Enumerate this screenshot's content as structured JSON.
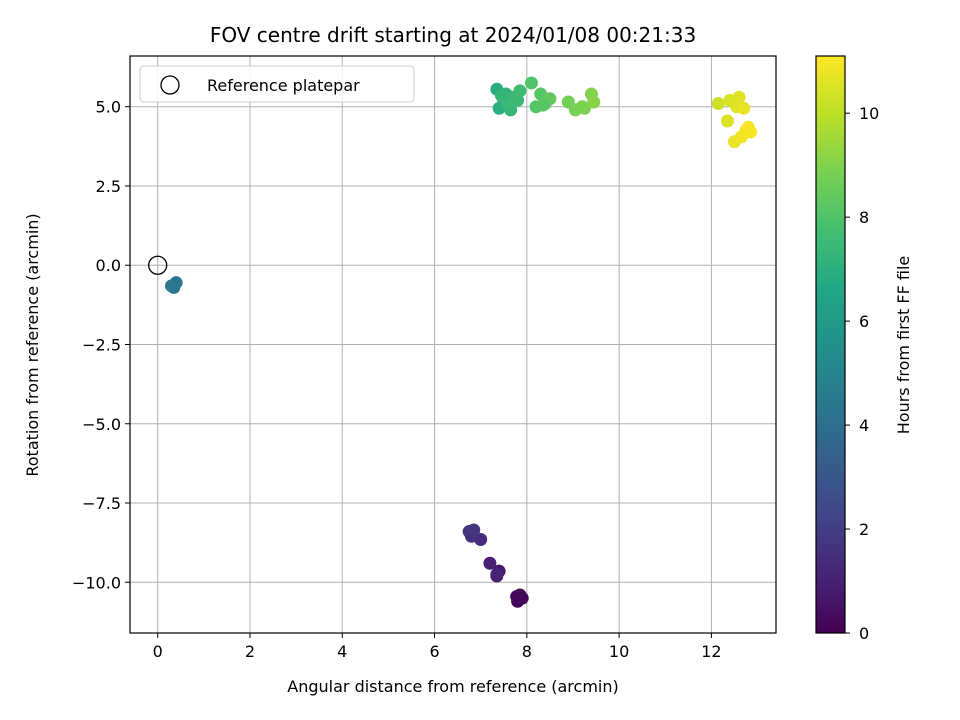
{
  "chart_data": {
    "type": "scatter",
    "title": "FOV centre drift starting at 2024/01/08 00:21:33",
    "xlabel": "Angular distance from reference (arcmin)",
    "ylabel": "Rotation from reference (arcmin)",
    "xlim": [
      -0.6,
      13.4
    ],
    "ylim": [
      -11.6,
      6.6
    ],
    "xticks": [
      0,
      2,
      4,
      6,
      8,
      10,
      12
    ],
    "yticks": [
      5.0,
      2.5,
      0.0,
      -2.5,
      -5.0,
      -7.5,
      -10.0
    ],
    "xtick_labels": [
      "0",
      "2",
      "4",
      "6",
      "8",
      "10",
      "12"
    ],
    "ytick_labels": [
      "5.0",
      "2.5",
      "0.0",
      "−2.5",
      "−5.0",
      "−7.5",
      "−10.0"
    ],
    "grid": true,
    "legend": {
      "position": "top-left",
      "entries": [
        "Reference platepar"
      ]
    },
    "reference_point": {
      "x": 0,
      "y": 0
    },
    "colorbar": {
      "label": "Hours from first FF file",
      "range": [
        0,
        11.1
      ],
      "ticks": [
        0,
        2,
        4,
        6,
        8,
        10
      ],
      "tick_labels": [
        "0",
        "2",
        "4",
        "6",
        "8",
        "10"
      ],
      "colormap": "viridis"
    },
    "points": [
      {
        "x": 7.8,
        "y": -10.6,
        "c": 0.0
      },
      {
        "x": 7.85,
        "y": -10.4,
        "c": 0.1
      },
      {
        "x": 7.9,
        "y": -10.5,
        "c": 0.2
      },
      {
        "x": 7.78,
        "y": -10.45,
        "c": 0.3
      },
      {
        "x": 7.35,
        "y": -9.8,
        "c": 0.7
      },
      {
        "x": 7.4,
        "y": -9.65,
        "c": 0.8
      },
      {
        "x": 7.2,
        "y": -9.4,
        "c": 1.0
      },
      {
        "x": 7.35,
        "y": -9.75,
        "c": 1.1
      },
      {
        "x": 7.0,
        "y": -8.65,
        "c": 1.4
      },
      {
        "x": 6.8,
        "y": -8.55,
        "c": 1.5
      },
      {
        "x": 6.75,
        "y": -8.4,
        "c": 1.6
      },
      {
        "x": 6.85,
        "y": -8.35,
        "c": 1.7
      },
      {
        "x": 0.35,
        "y": -0.7,
        "c": 4.2
      },
      {
        "x": 0.4,
        "y": -0.55,
        "c": 4.3
      },
      {
        "x": 0.3,
        "y": -0.65,
        "c": 4.4
      },
      {
        "x": 7.35,
        "y": 5.55,
        "c": 6.9
      },
      {
        "x": 7.4,
        "y": 4.95,
        "c": 7.0
      },
      {
        "x": 7.5,
        "y": 5.2,
        "c": 7.1
      },
      {
        "x": 7.55,
        "y": 5.4,
        "c": 7.2
      },
      {
        "x": 7.65,
        "y": 4.9,
        "c": 7.3
      },
      {
        "x": 7.7,
        "y": 5.3,
        "c": 7.4
      },
      {
        "x": 7.8,
        "y": 5.2,
        "c": 7.5
      },
      {
        "x": 7.85,
        "y": 5.5,
        "c": 7.6
      },
      {
        "x": 7.6,
        "y": 5.1,
        "c": 7.5
      },
      {
        "x": 7.45,
        "y": 5.35,
        "c": 7.3
      },
      {
        "x": 8.1,
        "y": 5.75,
        "c": 8.0
      },
      {
        "x": 8.2,
        "y": 5.0,
        "c": 8.1
      },
      {
        "x": 8.3,
        "y": 5.4,
        "c": 8.2
      },
      {
        "x": 8.4,
        "y": 5.1,
        "c": 8.3
      },
      {
        "x": 8.5,
        "y": 5.25,
        "c": 8.4
      },
      {
        "x": 8.35,
        "y": 5.05,
        "c": 8.2
      },
      {
        "x": 8.9,
        "y": 5.15,
        "c": 8.7
      },
      {
        "x": 9.05,
        "y": 4.9,
        "c": 8.8
      },
      {
        "x": 9.2,
        "y": 5.0,
        "c": 8.9
      },
      {
        "x": 9.25,
        "y": 4.95,
        "c": 8.9
      },
      {
        "x": 9.4,
        "y": 5.4,
        "c": 9.0
      },
      {
        "x": 9.45,
        "y": 5.15,
        "c": 9.1
      },
      {
        "x": 12.15,
        "y": 5.1,
        "c": 10.3
      },
      {
        "x": 12.35,
        "y": 4.55,
        "c": 10.5
      },
      {
        "x": 12.4,
        "y": 5.2,
        "c": 10.5
      },
      {
        "x": 12.55,
        "y": 5.0,
        "c": 10.6
      },
      {
        "x": 12.6,
        "y": 5.3,
        "c": 10.6
      },
      {
        "x": 12.7,
        "y": 4.95,
        "c": 10.7
      },
      {
        "x": 12.5,
        "y": 3.9,
        "c": 10.8
      },
      {
        "x": 12.65,
        "y": 4.05,
        "c": 10.9
      },
      {
        "x": 12.75,
        "y": 4.25,
        "c": 10.9
      },
      {
        "x": 12.8,
        "y": 4.35,
        "c": 11.0
      },
      {
        "x": 12.85,
        "y": 4.2,
        "c": 11.0
      }
    ]
  }
}
